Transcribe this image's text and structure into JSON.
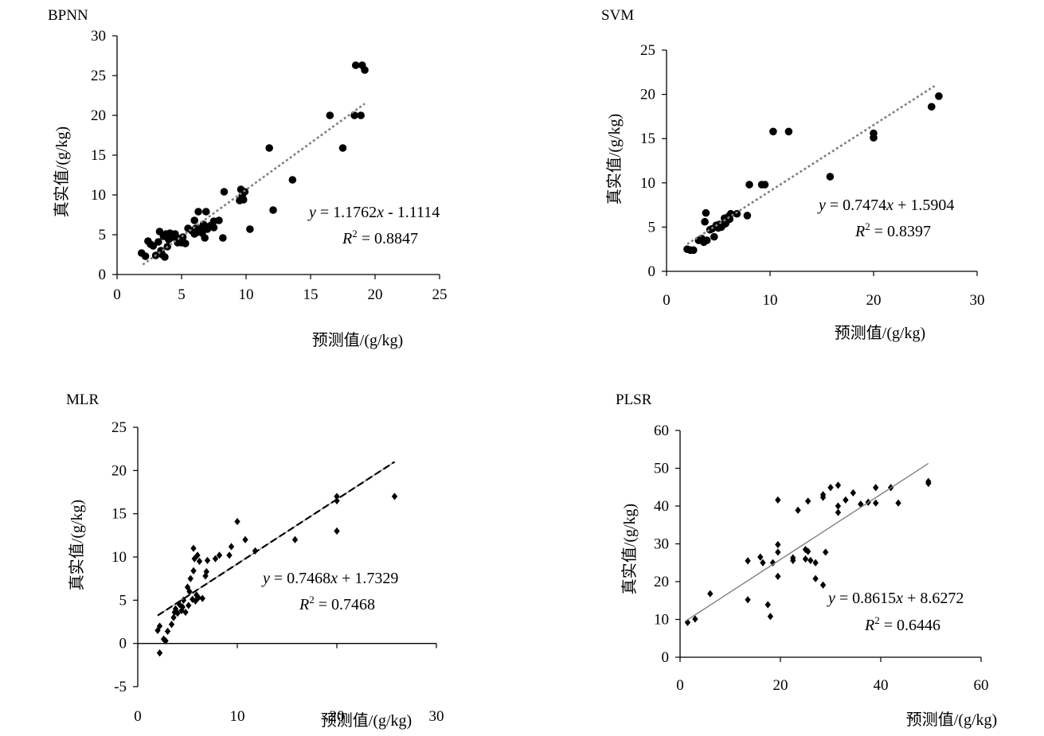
{
  "chart_data": [
    {
      "type": "scatter",
      "title": "BPNN",
      "xlabel": "预测值/(g/kg)",
      "ylabel": "真实值/(g/kg)",
      "xlim": [
        0,
        25
      ],
      "ylim": [
        0,
        30
      ],
      "xticks": [
        0,
        5,
        10,
        15,
        20,
        25
      ],
      "yticks": [
        0,
        5,
        10,
        15,
        20,
        25,
        30
      ],
      "marker": "circle",
      "trend": {
        "slope": 1.1762,
        "intercept": -1.1114,
        "x_range": [
          2,
          19.2
        ],
        "style": "dotted",
        "color": "#808080"
      },
      "equation": {
        "y": "y",
        "rest": " = 1.1762",
        "x": "x",
        "tail": " - 1.1114"
      },
      "r2": {
        "r": "R",
        "sup": "2",
        "tail": " = 0.8847"
      },
      "points": [
        [
          1.9,
          2.7
        ],
        [
          2.2,
          2.3
        ],
        [
          2.4,
          4.2
        ],
        [
          2.6,
          3.8
        ],
        [
          2.8,
          3.6
        ],
        [
          3.0,
          2.4
        ],
        [
          3.2,
          4.1
        ],
        [
          3.3,
          5.4
        ],
        [
          3.4,
          3.0
        ],
        [
          3.5,
          2.5
        ],
        [
          3.6,
          4.8
        ],
        [
          3.7,
          2.2
        ],
        [
          3.8,
          5.1
        ],
        [
          3.9,
          3.5
        ],
        [
          4.0,
          4.4
        ],
        [
          4.1,
          5.2
        ],
        [
          4.3,
          4.7
        ],
        [
          4.5,
          5.1
        ],
        [
          4.7,
          4.0
        ],
        [
          4.8,
          4.5
        ],
        [
          5.0,
          4.0
        ],
        [
          5.1,
          4.7
        ],
        [
          5.3,
          3.9
        ],
        [
          5.5,
          5.8
        ],
        [
          5.8,
          5.5
        ],
        [
          6.0,
          5.1
        ],
        [
          6.0,
          6.8
        ],
        [
          6.1,
          5.8
        ],
        [
          6.2,
          5.3
        ],
        [
          6.3,
          7.9
        ],
        [
          6.5,
          5.8
        ],
        [
          6.6,
          5.2
        ],
        [
          6.7,
          6.3
        ],
        [
          6.8,
          4.6
        ],
        [
          6.9,
          7.9
        ],
        [
          7.0,
          5.7
        ],
        [
          7.2,
          6.1
        ],
        [
          7.3,
          6.2
        ],
        [
          7.5,
          5.9
        ],
        [
          7.5,
          6.7
        ],
        [
          7.9,
          6.8
        ],
        [
          8.2,
          4.6
        ],
        [
          8.3,
          10.4
        ],
        [
          9.5,
          9.3
        ],
        [
          9.6,
          10.7
        ],
        [
          9.7,
          9.9
        ],
        [
          9.8,
          9.4
        ],
        [
          9.9,
          10.4
        ],
        [
          10.3,
          5.7
        ],
        [
          11.8,
          15.9
        ],
        [
          12.1,
          8.1
        ],
        [
          13.6,
          11.9
        ],
        [
          16.5,
          20.0
        ],
        [
          17.5,
          15.9
        ],
        [
          18.4,
          20.0
        ],
        [
          18.5,
          26.3
        ],
        [
          19.0,
          26.3
        ],
        [
          18.9,
          20.0
        ],
        [
          19.2,
          25.7
        ]
      ]
    },
    {
      "type": "scatter",
      "title": "SVM",
      "xlabel": "预测值/(g/kg)",
      "ylabel": "真实值/(g/kg)",
      "xlim": [
        0,
        30
      ],
      "ylim": [
        0,
        25
      ],
      "xticks": [
        0,
        10,
        20,
        30
      ],
      "yticks": [
        0,
        5,
        10,
        15,
        20,
        25
      ],
      "marker": "circle",
      "trend": {
        "slope": 0.7474,
        "intercept": 1.5904,
        "x_range": [
          2,
          25.9
        ],
        "style": "dotted",
        "color": "#808080"
      },
      "equation": {
        "y": "y",
        "rest": " = 0.7474",
        "x": "x",
        "tail": " + 1.5904"
      },
      "r2": {
        "r": "R",
        "sup": "2",
        "tail": " = 0.8397"
      },
      "points": [
        [
          2.0,
          2.5
        ],
        [
          2.3,
          2.4
        ],
        [
          2.6,
          2.4
        ],
        [
          3.1,
          3.5
        ],
        [
          3.4,
          3.7
        ],
        [
          3.6,
          3.3
        ],
        [
          3.7,
          5.6
        ],
        [
          3.8,
          6.6
        ],
        [
          3.9,
          3.5
        ],
        [
          4.2,
          4.7
        ],
        [
          4.4,
          4.8
        ],
        [
          4.6,
          3.9
        ],
        [
          4.8,
          5.2
        ],
        [
          5.0,
          4.9
        ],
        [
          5.1,
          5.3
        ],
        [
          5.3,
          5.0
        ],
        [
          5.5,
          5.3
        ],
        [
          5.6,
          6.0
        ],
        [
          5.7,
          5.4
        ],
        [
          5.9,
          5.8
        ],
        [
          6.0,
          6.2
        ],
        [
          6.2,
          6.5
        ],
        [
          6.1,
          5.9
        ],
        [
          6.8,
          6.5
        ],
        [
          7.8,
          6.3
        ],
        [
          8.0,
          9.8
        ],
        [
          9.2,
          9.8
        ],
        [
          9.5,
          9.8
        ],
        [
          10.3,
          15.8
        ],
        [
          11.8,
          15.8
        ],
        [
          15.8,
          10.7
        ],
        [
          20.0,
          15.1
        ],
        [
          20.0,
          15.6
        ],
        [
          25.6,
          18.6
        ],
        [
          26.3,
          19.8
        ]
      ]
    },
    {
      "type": "scatter",
      "title": "MLR",
      "xlabel": "预测值/(g/kg)",
      "ylabel": "真实值/(g/kg)",
      "xlim": [
        0,
        30
      ],
      "ylim": [
        -5,
        25
      ],
      "xticks": [
        0,
        10,
        20,
        30
      ],
      "yticks": [
        -5,
        0,
        5,
        10,
        15,
        20,
        25
      ],
      "marker": "diamond",
      "trend": {
        "slope": 0.7468,
        "intercept": 1.7329,
        "x_range": [
          2,
          25.8
        ],
        "style": "dashed",
        "color": "#000000"
      },
      "equation": {
        "y": "y",
        "rest": " = 0.7468",
        "x": "x",
        "tail": " + 1.7329"
      },
      "r2": {
        "r": "R",
        "sup": "2",
        "tail": " = 0.7468"
      },
      "points": [
        [
          2.2,
          -1.1
        ],
        [
          2.0,
          1.5
        ],
        [
          2.2,
          2.0
        ],
        [
          2.6,
          0.5
        ],
        [
          2.8,
          0.3
        ],
        [
          3.0,
          1.4
        ],
        [
          3.4,
          2.2
        ],
        [
          3.6,
          3.0
        ],
        [
          3.7,
          3.6
        ],
        [
          3.8,
          4.0
        ],
        [
          4.0,
          3.5
        ],
        [
          4.2,
          4.5
        ],
        [
          4.4,
          3.8
        ],
        [
          4.5,
          4.2
        ],
        [
          4.6,
          5.0
        ],
        [
          4.8,
          3.6
        ],
        [
          5.0,
          6.5
        ],
        [
          5.1,
          4.4
        ],
        [
          5.2,
          6.0
        ],
        [
          5.3,
          7.5
        ],
        [
          5.5,
          5.1
        ],
        [
          5.6,
          8.4
        ],
        [
          5.7,
          9.8
        ],
        [
          5.6,
          11.0
        ],
        [
          5.8,
          4.9
        ],
        [
          5.9,
          5.6
        ],
        [
          6.0,
          10.2
        ],
        [
          6.1,
          5.3
        ],
        [
          6.2,
          9.5
        ],
        [
          6.5,
          5.2
        ],
        [
          6.8,
          7.8
        ],
        [
          7.0,
          9.6
        ],
        [
          6.9,
          8.3
        ],
        [
          7.8,
          9.8
        ],
        [
          8.2,
          10.2
        ],
        [
          9.2,
          10.2
        ],
        [
          9.4,
          11.2
        ],
        [
          10.0,
          14.1
        ],
        [
          10.8,
          12.0
        ],
        [
          11.8,
          10.7
        ],
        [
          15.8,
          12.0
        ],
        [
          20.0,
          13.0
        ],
        [
          20.0,
          16.5
        ],
        [
          20.0,
          17.0
        ],
        [
          25.8,
          17.0
        ]
      ]
    },
    {
      "type": "scatter",
      "title": "PLSR",
      "xlabel": "预测值/(g/kg)",
      "ylabel": "真实值/(g/kg)",
      "xlim": [
        0,
        60
      ],
      "ylim": [
        0,
        60
      ],
      "xticks": [
        0,
        20,
        40,
        60
      ],
      "yticks": [
        0,
        10,
        20,
        30,
        40,
        50,
        60
      ],
      "marker": "diamond",
      "trend": {
        "slope": 0.8615,
        "intercept": 8.6272,
        "x_range": [
          1,
          49.5
        ],
        "style": "solid",
        "color": "#808080"
      },
      "equation": {
        "y": "y",
        "rest": " = 0.8615",
        "x": "x",
        "tail": " + 8.6272"
      },
      "r2": {
        "r": "R",
        "sup": "2",
        "tail": " = 0.6446"
      },
      "points": [
        [
          1.5,
          9.2
        ],
        [
          3.0,
          10.1
        ],
        [
          6.0,
          16.8
        ],
        [
          13.5,
          15.2
        ],
        [
          13.5,
          25.5
        ],
        [
          16.0,
          26.5
        ],
        [
          16.5,
          25.0
        ],
        [
          17.5,
          13.9
        ],
        [
          18.0,
          10.8
        ],
        [
          18.5,
          25.0
        ],
        [
          19.5,
          27.8
        ],
        [
          19.5,
          29.8
        ],
        [
          19.5,
          21.4
        ],
        [
          19.5,
          41.6
        ],
        [
          22.5,
          25.6
        ],
        [
          22.5,
          26.3
        ],
        [
          23.5,
          38.9
        ],
        [
          25.0,
          28.5
        ],
        [
          25.0,
          26.0
        ],
        [
          25.5,
          41.3
        ],
        [
          25.5,
          28.0
        ],
        [
          26.0,
          25.6
        ],
        [
          27.0,
          20.8
        ],
        [
          27.0,
          25.0
        ],
        [
          28.5,
          42.3
        ],
        [
          28.5,
          43.0
        ],
        [
          28.5,
          19.1
        ],
        [
          29.0,
          27.8
        ],
        [
          30.0,
          44.9
        ],
        [
          31.5,
          45.5
        ],
        [
          31.5,
          40.0
        ],
        [
          31.5,
          38.3
        ],
        [
          33.0,
          41.6
        ],
        [
          34.5,
          43.5
        ],
        [
          36.0,
          40.5
        ],
        [
          37.5,
          41.0
        ],
        [
          39.0,
          44.9
        ],
        [
          39.0,
          40.8
        ],
        [
          42.0,
          44.9
        ],
        [
          43.5,
          40.8
        ],
        [
          49.5,
          46.0
        ],
        [
          49.5,
          46.5
        ]
      ]
    }
  ]
}
